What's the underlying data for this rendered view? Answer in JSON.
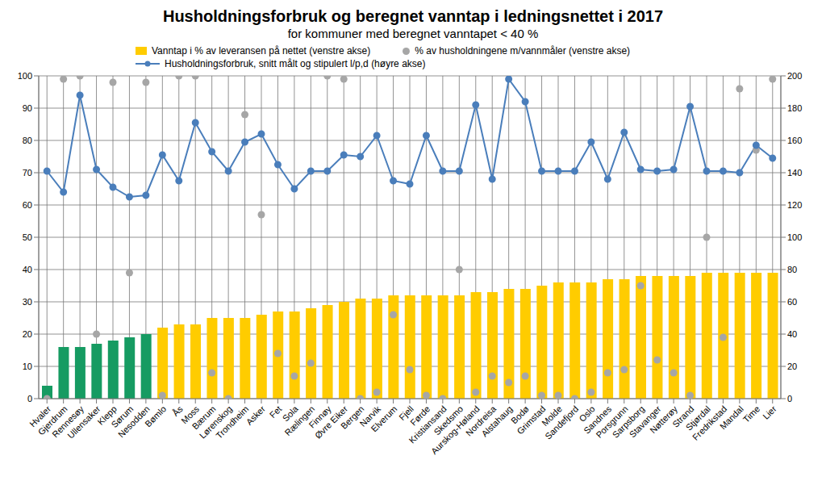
{
  "chart_data": {
    "type": "bar",
    "title": "Husholdningsforbruk og beregnet vanntap i ledningsnettet i 2017",
    "subtitle": "for kommuner med beregnet vanntapet < 40 %",
    "categories": [
      "Hvaler",
      "Gjerdrum",
      "Rennesøy",
      "Ullensaker",
      "Klepp",
      "Sørum",
      "Nesodden",
      "Bømlo",
      "Ås",
      "Moss",
      "Bærum",
      "Lørenskog",
      "Trondheim",
      "Asker",
      "Fet",
      "Sola",
      "Rælingen",
      "Finnøy",
      "Øvre Eiker",
      "Bergen",
      "Narvik",
      "Elverum",
      "Fjell",
      "Førde",
      "Kristiansand",
      "Skedsmo",
      "Aurskog-Høland",
      "Nordreisa",
      "Alstahaug",
      "Bodø",
      "Grimstad",
      "Molde",
      "Sandefjord",
      "Oslo",
      "Sandnes",
      "Porsgrunn",
      "Sarpsborg",
      "Stavanger",
      "Nøtterøy",
      "Strand",
      "Stjørdal",
      "Fredrikstad",
      "Mandal",
      "Time",
      "Lier"
    ],
    "ylim": [
      0,
      100
    ],
    "yticks": [
      0,
      10,
      20,
      30,
      40,
      50,
      60,
      70,
      80,
      90,
      100
    ],
    "y2lim": [
      0,
      200
    ],
    "y2ticks": [
      0,
      20,
      40,
      60,
      80,
      100,
      120,
      140,
      160,
      180,
      200
    ],
    "grid": true,
    "series": [
      {
        "name": "Vanntap i % av leveransen på nettet (venstre akse)",
        "type": "bar",
        "color": "#ffcc00",
        "colors": [
          "#169b62",
          "#169b62",
          "#169b62",
          "#169b62",
          "#169b62",
          "#169b62",
          "#169b62",
          "#ffcc00",
          "#ffcc00",
          "#ffcc00",
          "#ffcc00",
          "#ffcc00",
          "#ffcc00",
          "#ffcc00",
          "#ffcc00",
          "#ffcc00",
          "#ffcc00",
          "#ffcc00",
          "#ffcc00",
          "#ffcc00",
          "#ffcc00",
          "#ffcc00",
          "#ffcc00",
          "#ffcc00",
          "#ffcc00",
          "#ffcc00",
          "#ffcc00",
          "#ffcc00",
          "#ffcc00",
          "#ffcc00",
          "#ffcc00",
          "#ffcc00",
          "#ffcc00",
          "#ffcc00",
          "#ffcc00",
          "#ffcc00",
          "#ffcc00",
          "#ffcc00",
          "#ffcc00",
          "#ffcc00",
          "#ffcc00",
          "#ffcc00",
          "#ffcc00",
          "#ffcc00",
          "#ffcc00"
        ],
        "values": [
          4,
          16,
          16,
          17,
          18,
          19,
          20,
          22,
          23,
          23,
          25,
          25,
          25,
          26,
          27,
          27,
          28,
          29,
          30,
          31,
          31,
          32,
          32,
          32,
          32,
          32,
          33,
          33,
          34,
          34,
          35,
          36,
          36,
          36,
          37,
          37,
          38,
          38,
          38,
          38,
          39,
          39,
          39,
          39,
          39
        ]
      },
      {
        "name": "% av husholdningene m/vannmåler (venstre akse)",
        "type": "scatter",
        "color": "#a6a6a6",
        "marker": "circle",
        "values": [
          0,
          99,
          100,
          20,
          98,
          39,
          98,
          1,
          100,
          100,
          8,
          0,
          88,
          57,
          14,
          7,
          11,
          100,
          99,
          0,
          2,
          26,
          9,
          1,
          0,
          40,
          2,
          7,
          5,
          7,
          1,
          1,
          0,
          2,
          8,
          9,
          35,
          12,
          8,
          1,
          50,
          19,
          96,
          77,
          99
        ]
      },
      {
        "name": "Husholdningsforbruk, snitt målt og stipulert l/p,d (høyre akse)",
        "type": "line",
        "color": "#4a7ebb",
        "marker": "circle",
        "axis": "y2",
        "values": [
          141,
          128,
          188,
          142,
          131,
          125,
          126,
          151,
          135,
          171,
          153,
          141,
          159,
          164,
          145,
          130,
          141,
          141,
          151,
          150,
          163,
          135,
          133,
          163,
          141,
          141,
          182,
          136,
          198,
          184,
          141,
          141,
          141,
          159,
          136,
          165,
          142,
          141,
          142,
          181,
          141,
          141,
          140,
          157,
          149
        ]
      }
    ]
  }
}
